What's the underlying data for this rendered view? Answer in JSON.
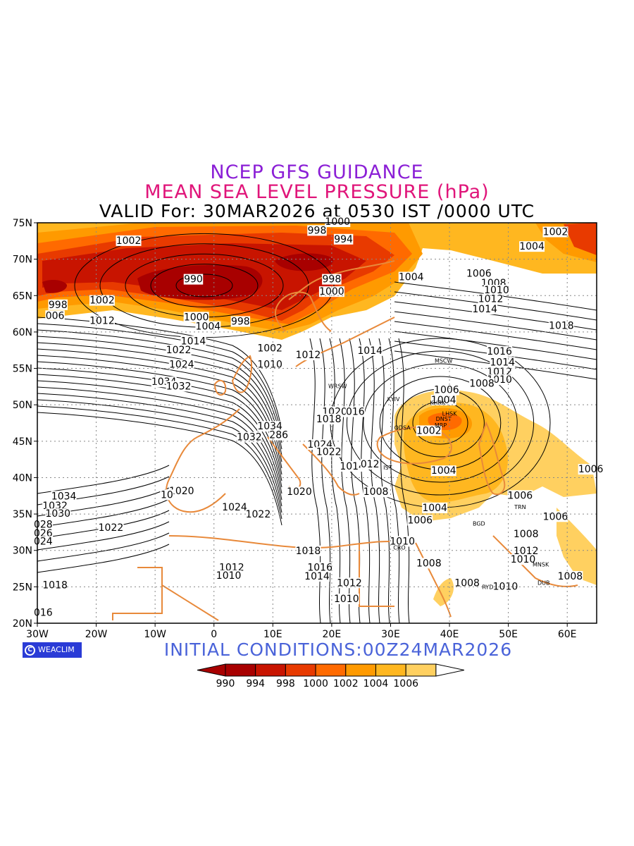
{
  "header": {
    "title_line1": "NCEP GFS GUIDANCE",
    "title_line2": "MEAN SEA LEVEL PRESSURE (hPa)",
    "title_line3": "VALID For: 30MAR2026 at 0530 IST /0000 UTC",
    "line1_color": "#8b1fd6",
    "line2_color": "#e0157a"
  },
  "footer": {
    "initial_conditions": "INITIAL CONDITIONS:00Z24MAR2026",
    "initial_color": "#4a63d9",
    "logo_text": "WEACLIM"
  },
  "map": {
    "extent": {
      "lon_min": -30,
      "lon_max": 65,
      "lat_min": 20,
      "lat_max": 75
    },
    "lat_ticks": [
      {
        "v": 75,
        "label": "75N"
      },
      {
        "v": 70,
        "label": "70N"
      },
      {
        "v": 65,
        "label": "65N"
      },
      {
        "v": 60,
        "label": "60N"
      },
      {
        "v": 55,
        "label": "55N"
      },
      {
        "v": 50,
        "label": "50N"
      },
      {
        "v": 45,
        "label": "45N"
      },
      {
        "v": 40,
        "label": "40N"
      },
      {
        "v": 35,
        "label": "35N"
      },
      {
        "v": 30,
        "label": "30N"
      },
      {
        "v": 25,
        "label": "25N"
      },
      {
        "v": 20,
        "label": "20N"
      }
    ],
    "lon_ticks": [
      {
        "v": -30,
        "label": "30W"
      },
      {
        "v": -20,
        "label": "20W"
      },
      {
        "v": -10,
        "label": "10W"
      },
      {
        "v": 0,
        "label": "0"
      },
      {
        "v": 10,
        "label": "10E"
      },
      {
        "v": 20,
        "label": "20E"
      },
      {
        "v": 30,
        "label": "30E"
      },
      {
        "v": 40,
        "label": "40E"
      },
      {
        "v": 50,
        "label": "50E"
      },
      {
        "v": 60,
        "label": "60E"
      }
    ],
    "grid_lat": [
      70,
      65,
      60,
      55,
      50,
      45,
      40,
      35,
      30,
      25
    ],
    "grid_lon": [
      -20,
      -10,
      0,
      10,
      20,
      30,
      40,
      50,
      60
    ],
    "contour_labels": [
      {
        "lon": -14.5,
        "lat": 72.3,
        "text": "1002"
      },
      {
        "lon": -26.5,
        "lat": 63.5,
        "text": "998"
      },
      {
        "lon": -27.0,
        "lat": 62.0,
        "text": "006"
      },
      {
        "lon": -19.0,
        "lat": 64.1,
        "text": "1002"
      },
      {
        "lon": -3.5,
        "lat": 67.0,
        "text": "990"
      },
      {
        "lon": -19.0,
        "lat": 61.3,
        "text": "1012"
      },
      {
        "lon": -3.0,
        "lat": 61.8,
        "text": "1000"
      },
      {
        "lon": -1.0,
        "lat": 60.5,
        "text": "1004"
      },
      {
        "lon": 4.5,
        "lat": 61.2,
        "text": "998"
      },
      {
        "lon": -3.5,
        "lat": 58.5,
        "text": "1014"
      },
      {
        "lon": -6.0,
        "lat": 57.3,
        "text": "1022"
      },
      {
        "lon": -5.5,
        "lat": 55.3,
        "text": "1024"
      },
      {
        "lon": -8.5,
        "lat": 52.9,
        "text": "1034"
      },
      {
        "lon": -6.0,
        "lat": 52.3,
        "text": "1032"
      },
      {
        "lon": 9.5,
        "lat": 57.5,
        "text": "1002"
      },
      {
        "lon": 9.5,
        "lat": 55.3,
        "text": "1010"
      },
      {
        "lon": 16.0,
        "lat": 56.6,
        "text": "1012"
      },
      {
        "lon": 17.5,
        "lat": 73.7,
        "text": "998"
      },
      {
        "lon": 21.0,
        "lat": 74.9,
        "text": "1000"
      },
      {
        "lon": 22.0,
        "lat": 72.5,
        "text": "994"
      },
      {
        "lon": 20.0,
        "lat": 67.0,
        "text": "998"
      },
      {
        "lon": 20.0,
        "lat": 65.3,
        "text": "1000"
      },
      {
        "lon": 33.5,
        "lat": 67.3,
        "text": "1004"
      },
      {
        "lon": 45.0,
        "lat": 67.8,
        "text": "1006"
      },
      {
        "lon": 47.5,
        "lat": 66.5,
        "text": "1008"
      },
      {
        "lon": 48.0,
        "lat": 65.5,
        "text": "1010"
      },
      {
        "lon": 47.0,
        "lat": 64.3,
        "text": "1012"
      },
      {
        "lon": 46.0,
        "lat": 62.9,
        "text": "1014"
      },
      {
        "lon": 58.0,
        "lat": 73.5,
        "text": "1002"
      },
      {
        "lon": 54.0,
        "lat": 71.5,
        "text": "1004"
      },
      {
        "lon": 59.0,
        "lat": 60.6,
        "text": "1018"
      },
      {
        "lon": 26.5,
        "lat": 57.2,
        "text": "1014"
      },
      {
        "lon": 48.5,
        "lat": 57.1,
        "text": "1016"
      },
      {
        "lon": 49.0,
        "lat": 55.6,
        "text": "1014"
      },
      {
        "lon": 48.5,
        "lat": 54.3,
        "text": "1012"
      },
      {
        "lon": 48.5,
        "lat": 53.2,
        "text": "1010"
      },
      {
        "lon": 45.5,
        "lat": 52.7,
        "text": "1008"
      },
      {
        "lon": 39.5,
        "lat": 51.8,
        "text": "1006"
      },
      {
        "lon": 39.0,
        "lat": 50.4,
        "text": "1004"
      },
      {
        "lon": 36.5,
        "lat": 46.2,
        "text": "1002"
      },
      {
        "lon": 20.5,
        "lat": 48.8,
        "text": "1020"
      },
      {
        "lon": 24.0,
        "lat": 48.8,
        "text": "016"
      },
      {
        "lon": 19.5,
        "lat": 47.8,
        "text": "1018"
      },
      {
        "lon": 9.5,
        "lat": 46.8,
        "text": "1034"
      },
      {
        "lon": 6.0,
        "lat": 45.3,
        "text": "1032"
      },
      {
        "lon": 11.0,
        "lat": 45.6,
        "text": "286"
      },
      {
        "lon": 18.0,
        "lat": 44.3,
        "text": "1024"
      },
      {
        "lon": 19.5,
        "lat": 43.3,
        "text": "1022"
      },
      {
        "lon": 23.5,
        "lat": 41.3,
        "text": "1014"
      },
      {
        "lon": 26.5,
        "lat": 41.6,
        "text": "012"
      },
      {
        "lon": 39.0,
        "lat": 40.7,
        "text": "1004"
      },
      {
        "lon": 14.5,
        "lat": 37.8,
        "text": "1020"
      },
      {
        "lon": -5.5,
        "lat": 37.9,
        "text": "1020"
      },
      {
        "lon": -8.0,
        "lat": 37.4,
        "text": "10"
      },
      {
        "lon": -25.5,
        "lat": 37.2,
        "text": "1034"
      },
      {
        "lon": -27.0,
        "lat": 35.9,
        "text": "1032"
      },
      {
        "lon": -26.5,
        "lat": 34.8,
        "text": "1030"
      },
      {
        "lon": -29.0,
        "lat": 33.3,
        "text": "028"
      },
      {
        "lon": -29.0,
        "lat": 32.1,
        "text": "026"
      },
      {
        "lon": -29.0,
        "lat": 31.0,
        "text": "024"
      },
      {
        "lon": -17.5,
        "lat": 32.9,
        "text": "1022"
      },
      {
        "lon": 3.5,
        "lat": 35.7,
        "text": "1024"
      },
      {
        "lon": 7.5,
        "lat": 34.7,
        "text": "1022"
      },
      {
        "lon": 27.5,
        "lat": 37.8,
        "text": "1008"
      },
      {
        "lon": 37.5,
        "lat": 35.6,
        "text": "1004"
      },
      {
        "lon": 35.0,
        "lat": 33.9,
        "text": "1006"
      },
      {
        "lon": 32.0,
        "lat": 31.0,
        "text": "1010"
      },
      {
        "lon": 36.5,
        "lat": 28.0,
        "text": "1008"
      },
      {
        "lon": 52.0,
        "lat": 37.3,
        "text": "1006"
      },
      {
        "lon": 58.0,
        "lat": 34.4,
        "text": "1006"
      },
      {
        "lon": 53.0,
        "lat": 32.0,
        "text": "1008"
      },
      {
        "lon": 53.0,
        "lat": 29.7,
        "text": "1012"
      },
      {
        "lon": 52.5,
        "lat": 28.5,
        "text": "1010"
      },
      {
        "lon": 60.5,
        "lat": 26.2,
        "text": "1008"
      },
      {
        "lon": 64.0,
        "lat": 40.9,
        "text": "1006"
      },
      {
        "lon": 43.0,
        "lat": 25.3,
        "text": "1008"
      },
      {
        "lon": 49.5,
        "lat": 24.8,
        "text": "1010"
      },
      {
        "lon": 16.0,
        "lat": 29.7,
        "text": "1018"
      },
      {
        "lon": 18.0,
        "lat": 27.4,
        "text": "1016"
      },
      {
        "lon": 17.5,
        "lat": 26.2,
        "text": "1014"
      },
      {
        "lon": 3.0,
        "lat": 27.4,
        "text": "1012"
      },
      {
        "lon": 2.5,
        "lat": 26.3,
        "text": "1010"
      },
      {
        "lon": 23.0,
        "lat": 25.3,
        "text": "1012"
      },
      {
        "lon": 22.5,
        "lat": 23.1,
        "text": "1010"
      },
      {
        "lon": -27.0,
        "lat": 25.0,
        "text": "1018"
      },
      {
        "lon": -29.0,
        "lat": 21.2,
        "text": "016"
      }
    ],
    "cities": [
      {
        "lon": 39.0,
        "lat": 55.8,
        "text": "MSCW"
      },
      {
        "lon": 21.0,
        "lat": 52.3,
        "text": "WRSW"
      },
      {
        "lon": 30.5,
        "lat": 50.5,
        "text": "KYIV"
      },
      {
        "lon": 38.0,
        "lat": 50.0,
        "text": "KHRK"
      },
      {
        "lon": 40.0,
        "lat": 48.5,
        "text": "LHSK"
      },
      {
        "lon": 39.0,
        "lat": 47.8,
        "text": "DNST"
      },
      {
        "lon": 38.5,
        "lat": 46.9,
        "text": "MRP"
      },
      {
        "lon": 32.0,
        "lat": 46.6,
        "text": "ODSA"
      },
      {
        "lon": 29.5,
        "lat": 41.1,
        "text": "IST"
      },
      {
        "lon": 31.5,
        "lat": 30.1,
        "text": "CRO"
      },
      {
        "lon": 45.0,
        "lat": 33.4,
        "text": "BGD"
      },
      {
        "lon": 52.0,
        "lat": 35.7,
        "text": "TRN"
      },
      {
        "lon": 46.5,
        "lat": 24.7,
        "text": "RYD"
      },
      {
        "lon": 55.5,
        "lat": 27.8,
        "text": "MNSK"
      },
      {
        "lon": 56.0,
        "lat": 25.3,
        "text": "DUB"
      }
    ]
  },
  "colorbar": {
    "labels": [
      "990",
      "994",
      "998",
      "1000",
      "1002",
      "1004",
      "1006"
    ],
    "colors": [
      "#a80000",
      "#c81400",
      "#e83a00",
      "#ff6a00",
      "#ff9a00",
      "#ffb720",
      "#ffd060"
    ],
    "end_color": "#ffffff"
  }
}
